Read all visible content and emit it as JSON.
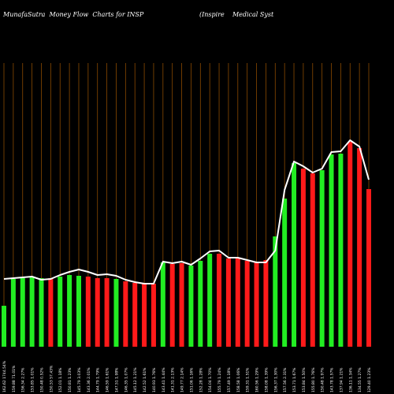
{
  "header": {
    "left": "MunafaSutra  Money Flow  Charts for INSP",
    "right": "(Inspire    Medical Syst"
  },
  "colors": {
    "background": "#000000",
    "grid": "#8a4a00",
    "up": "#22ee22",
    "down": "#ff1a1a",
    "line": "#ffffff"
  },
  "chart_data": {
    "type": "bar",
    "title": "MunafaSutra  Money Flow  Charts for INSP",
    "categories": [
      "162.62 1744.54%",
      "159.88 71.01%",
      "156.34 2.27%",
      "153.85 1.01%",
      "150.48 0.52%",
      "150.53 57.43%",
      "152.01 1.18%",
      "150.81 1.23%",
      "145.79 3.03%",
      "143.36 2.01%",
      "144.79 1.79%",
      "146.59 1.61%",
      "147.51 1.98%",
      "146.35 1.07%",
      "145.12 1.21%",
      "142.52 1.61%",
      "140.93 1.76%",
      "143.41 1.44%",
      "141.31 2.13%",
      "149.77 2.14%",
      "151.06 1.16%",
      "152.28 1.28%",
      "154.04 1.70%",
      "155.79 1.24%",
      "157.49 1.18%",
      "158.58 1.06%",
      "159.31 1.51%",
      "160.56 1.29%",
      "158.08 1.39%",
      "156.37 1.30%",
      "157.56 2.31%",
      "153.71 1.67%",
      "153.84 1.50%",
      "155.80 1.76%",
      "150.48 1.97%",
      "143.78 1.57%",
      "137.94 1.21%",
      "136.11 1.34%",
      "134.55 1.27%",
      "129.40 1.23%"
    ],
    "series": [
      {
        "values": [
          52,
          86,
          87,
          88,
          87,
          87,
          89,
          91,
          90,
          89,
          87,
          87,
          86,
          83,
          81,
          80,
          80,
          107,
          105,
          106,
          103,
          109,
          118,
          118,
          112,
          112,
          109,
          108,
          110,
          140,
          188,
          233,
          226,
          220,
          224,
          244,
          245,
          260,
          252,
          200
        ],
        "colors": [
          "green",
          "green",
          "green",
          "green",
          "green",
          "red",
          "green",
          "green",
          "green",
          "red",
          "red",
          "red",
          "green",
          "red",
          "red",
          "red",
          "red",
          "green",
          "red",
          "red",
          "green",
          "green",
          "green",
          "red",
          "red",
          "red",
          "red",
          "red",
          "red",
          "green",
          "green",
          "green",
          "red",
          "red",
          "green",
          "green",
          "green",
          "red",
          "red",
          "red"
        ]
      },
      {
        "values": [
          86,
          87,
          88,
          89,
          85,
          86,
          91,
          95,
          98,
          95,
          91,
          92,
          90,
          85,
          82,
          80,
          80,
          108,
          106,
          108,
          104,
          112,
          121,
          122,
          113,
          113,
          110,
          107,
          107,
          122,
          199,
          235,
          229,
          221,
          226,
          247,
          248,
          262,
          254,
          212
        ]
      }
    ]
  }
}
